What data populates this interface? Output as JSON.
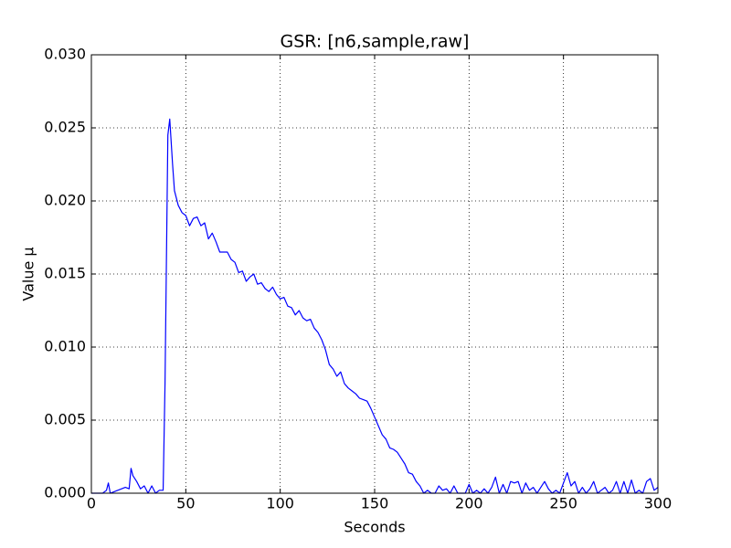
{
  "chart_data": {
    "type": "line",
    "title": "GSR: [n6,sample,raw]",
    "x_label": "Seconds",
    "y_label": "Value µ",
    "x": [
      0,
      2,
      4,
      6,
      8,
      9,
      10,
      12,
      14,
      16,
      18,
      20,
      21,
      22,
      24,
      26,
      28,
      30,
      32,
      34,
      36,
      38,
      39,
      40.5,
      41.5,
      43,
      44,
      46,
      48,
      50,
      52,
      54,
      56,
      58,
      60,
      62,
      64,
      66,
      68,
      70,
      72,
      74,
      76,
      78,
      80,
      82,
      84,
      86,
      88,
      90,
      92,
      94,
      96,
      98,
      100,
      102,
      104,
      106,
      108,
      110,
      112,
      114,
      116,
      118,
      120,
      122,
      124,
      126,
      128,
      130,
      132,
      134,
      136,
      138,
      140,
      142,
      144,
      146,
      148,
      150,
      152,
      154,
      156,
      158,
      160,
      162,
      164,
      166,
      168,
      170,
      172,
      174,
      176,
      178,
      180,
      182,
      184,
      186,
      188,
      190,
      192,
      194,
      196,
      198,
      200,
      202,
      204,
      206,
      208,
      210,
      212,
      214,
      216,
      218,
      220,
      222,
      224,
      226,
      228,
      230,
      232,
      234,
      236,
      238,
      240,
      242,
      244,
      246,
      248,
      250,
      252,
      254,
      256,
      258,
      260,
      262,
      264,
      266,
      268,
      270,
      272,
      274,
      276,
      278,
      280,
      282,
      284,
      286,
      288,
      290,
      292,
      294,
      296,
      298,
      300
    ],
    "series": [
      {
        "name": "GSR",
        "color": "#0000ff",
        "values": [
          0,
          0,
          0,
          0,
          0.0002,
          0.0007,
          0,
          0.0001,
          0.0002,
          0.0003,
          0.0004,
          0.0003,
          0.0017,
          0.0012,
          0.0008,
          0.0003,
          0.0005,
          0,
          0.0005,
          0,
          0.0002,
          0.0002,
          0.0075,
          0.0245,
          0.0256,
          0.0225,
          0.0207,
          0.0197,
          0.0192,
          0.019,
          0.0183,
          0.0188,
          0.0189,
          0.0183,
          0.0185,
          0.0174,
          0.0178,
          0.0172,
          0.0165,
          0.0165,
          0.0165,
          0.016,
          0.0158,
          0.0151,
          0.0152,
          0.0145,
          0.0148,
          0.015,
          0.0143,
          0.0144,
          0.014,
          0.0138,
          0.0141,
          0.0136,
          0.0133,
          0.0134,
          0.0128,
          0.0127,
          0.0122,
          0.0125,
          0.012,
          0.0118,
          0.0119,
          0.0113,
          0.011,
          0.0105,
          0.0098,
          0.0088,
          0.0085,
          0.008,
          0.0083,
          0.0075,
          0.0072,
          0.007,
          0.0068,
          0.0065,
          0.0064,
          0.0063,
          0.0058,
          0.0052,
          0.0046,
          0.004,
          0.0037,
          0.0031,
          0.003,
          0.0028,
          0.0024,
          0.002,
          0.0014,
          0.0013,
          0.0008,
          0.0005,
          0,
          0.0002,
          0,
          0,
          0.0005,
          0.0002,
          0.0003,
          0,
          0.0005,
          0,
          0,
          0,
          0.0006,
          0,
          0.0002,
          0,
          0.0003,
          0,
          0.0004,
          0.0011,
          0,
          0.0006,
          0,
          0.0008,
          0.0007,
          0.0008,
          0,
          0.0007,
          0.0002,
          0.0004,
          0,
          0.0004,
          0.0008,
          0.0003,
          0,
          0.0002,
          0,
          0.0007,
          0.0014,
          0.0005,
          0.0008,
          0,
          0.0004,
          0,
          0.0003,
          0.0008,
          0,
          0.0002,
          0.0004,
          0,
          0.0002,
          0.0008,
          0,
          0.0008,
          0,
          0.0009,
          0,
          0.0002,
          0,
          0.0008,
          0.001,
          0.0002,
          0.0004
        ]
      }
    ],
    "xlim": [
      0,
      300
    ],
    "xticks": [
      0,
      50,
      100,
      150,
      200,
      250,
      300
    ],
    "ylim": [
      0,
      0.03
    ],
    "yticks": [
      {
        "value": 0,
        "label": "0.000"
      },
      {
        "value": 0.005,
        "label": "0.005"
      },
      {
        "value": 0.01,
        "label": "0.010"
      },
      {
        "value": 0.015,
        "label": "0.015"
      },
      {
        "value": 0.02,
        "label": "0.020"
      },
      {
        "value": 0.025,
        "label": "0.025"
      },
      {
        "value": 0.03,
        "label": "0.030"
      }
    ],
    "grid": true
  }
}
